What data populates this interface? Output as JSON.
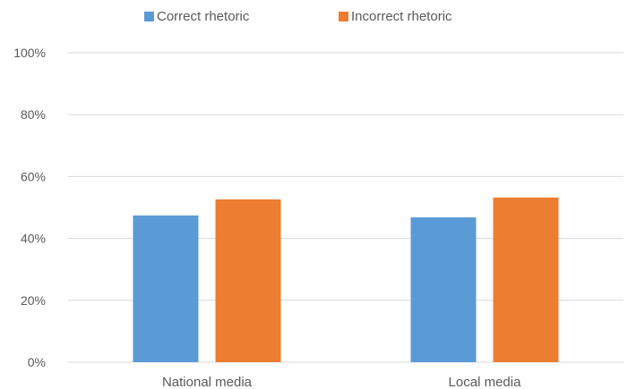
{
  "chart_data": {
    "type": "bar",
    "title": "",
    "xlabel": "",
    "ylabel": "",
    "categories": [
      "National media",
      "Local media"
    ],
    "series": [
      {
        "name": "Correct rhetoric",
        "values": [
          47.4,
          46.8
        ],
        "color": "#5B9BD5"
      },
      {
        "name": "Incorrect rhetoric",
        "values": [
          52.6,
          53.2
        ],
        "color": "#ED7D31"
      }
    ],
    "ylim": [
      0,
      100
    ],
    "yticks": [
      "0%",
      "20%",
      "40%",
      "60%",
      "80%",
      "100%"
    ],
    "ytick_values": [
      0,
      20,
      40,
      60,
      80,
      100
    ],
    "grid": true,
    "gridline_color": "#D9D9D9",
    "legend_position": "top"
  }
}
